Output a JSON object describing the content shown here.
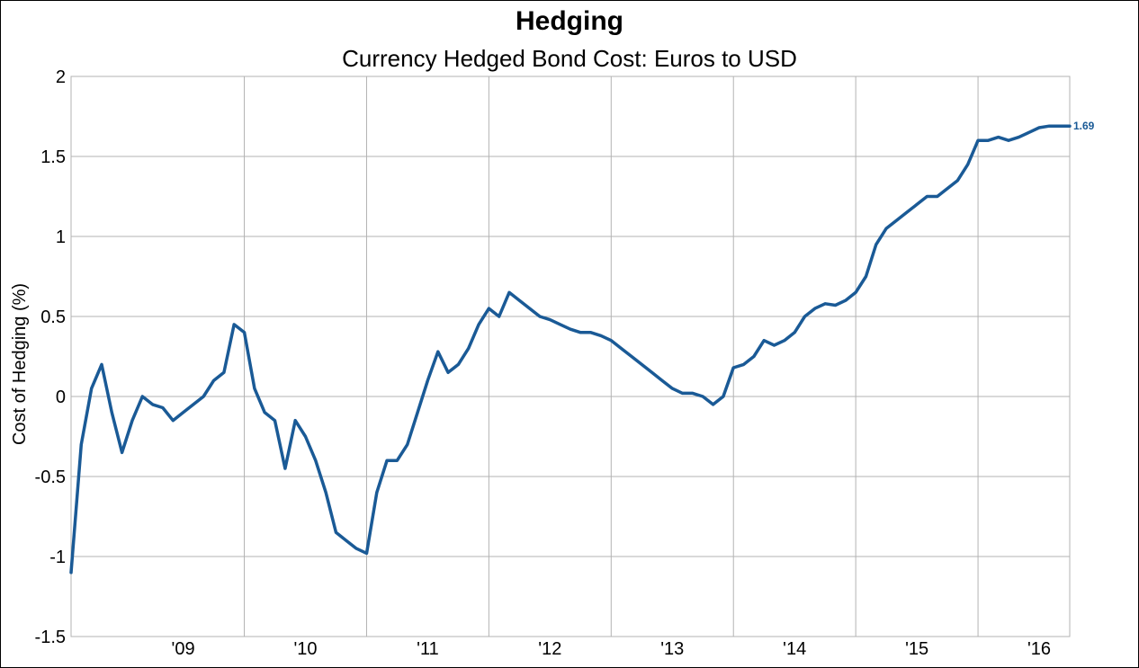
{
  "chart_data": {
    "type": "line",
    "title": "Hedging",
    "subtitle": "Currency Hedged Bond Cost: Euros to USD",
    "xlabel": "",
    "ylabel": "Cost of Hedging (%)",
    "ylim": [
      -1.5,
      2
    ],
    "yticks": [
      "-1.5",
      "-1",
      "-0.5",
      "0",
      "0.5",
      "1",
      "1.5",
      "2"
    ],
    "xlim": [
      "2008-08",
      "2016-10"
    ],
    "xticks": [
      {
        "label": "'09",
        "date": "2009-01"
      },
      {
        "label": "'10",
        "date": "2010-01"
      },
      {
        "label": "'11",
        "date": "2011-01"
      },
      {
        "label": "'12",
        "date": "2012-01"
      },
      {
        "label": "'13",
        "date": "2013-01"
      },
      {
        "label": "'14",
        "date": "2014-01"
      },
      {
        "label": "'15",
        "date": "2015-01"
      },
      {
        "label": "'16",
        "date": "2016-01"
      }
    ],
    "grid": true,
    "legend": "none",
    "series": [
      {
        "color": "#1a5a96",
        "end_label": "1.69",
        "x": [
          "2008-08",
          "2008-09",
          "2008-10",
          "2008-11",
          "2008-12",
          "2009-01",
          "2009-02",
          "2009-03",
          "2009-04",
          "2009-05",
          "2009-06",
          "2009-07",
          "2009-08",
          "2009-09",
          "2009-10",
          "2009-11",
          "2009-12",
          "2010-01",
          "2010-02",
          "2010-03",
          "2010-04",
          "2010-05",
          "2010-06",
          "2010-07",
          "2010-08",
          "2010-09",
          "2010-10",
          "2010-11",
          "2010-12",
          "2011-01",
          "2011-02",
          "2011-03",
          "2011-04",
          "2011-05",
          "2011-06",
          "2011-07",
          "2011-08",
          "2011-09",
          "2011-10",
          "2011-11",
          "2011-12",
          "2012-01",
          "2012-02",
          "2012-03",
          "2012-04",
          "2012-05",
          "2012-06",
          "2012-07",
          "2012-08",
          "2012-09",
          "2012-10",
          "2012-11",
          "2012-12",
          "2013-01",
          "2013-02",
          "2013-03",
          "2013-04",
          "2013-05",
          "2013-06",
          "2013-07",
          "2013-08",
          "2013-09",
          "2013-10",
          "2013-11",
          "2013-12",
          "2014-01",
          "2014-02",
          "2014-03",
          "2014-04",
          "2014-05",
          "2014-06",
          "2014-07",
          "2014-08",
          "2014-09",
          "2014-10",
          "2014-11",
          "2014-12",
          "2015-01",
          "2015-02",
          "2015-03",
          "2015-04",
          "2015-05",
          "2015-06",
          "2015-07",
          "2015-08",
          "2015-09",
          "2015-10",
          "2015-11",
          "2015-12",
          "2016-01",
          "2016-02",
          "2016-03",
          "2016-04",
          "2016-05",
          "2016-06",
          "2016-07",
          "2016-08",
          "2016-09",
          "2016-10"
        ],
        "values": [
          -1.1,
          -0.3,
          0.05,
          0.2,
          -0.1,
          -0.35,
          -0.15,
          0.0,
          -0.05,
          -0.07,
          -0.15,
          -0.1,
          -0.05,
          0.0,
          0.1,
          0.15,
          0.45,
          0.4,
          0.05,
          -0.1,
          -0.15,
          -0.45,
          -0.15,
          -0.25,
          -0.4,
          -0.6,
          -0.85,
          -0.9,
          -0.95,
          -0.98,
          -0.6,
          -0.4,
          -0.4,
          -0.3,
          -0.1,
          0.1,
          0.28,
          0.15,
          0.2,
          0.3,
          0.45,
          0.55,
          0.5,
          0.65,
          0.6,
          0.55,
          0.5,
          0.48,
          0.45,
          0.42,
          0.4,
          0.4,
          0.38,
          0.35,
          0.3,
          0.25,
          0.2,
          0.15,
          0.1,
          0.05,
          0.02,
          0.02,
          0.0,
          -0.05,
          0.0,
          0.18,
          0.2,
          0.25,
          0.35,
          0.32,
          0.35,
          0.4,
          0.5,
          0.55,
          0.58,
          0.57,
          0.6,
          0.65,
          0.75,
          0.95,
          1.05,
          1.1,
          1.15,
          1.2,
          1.25,
          1.25,
          1.3,
          1.35,
          1.45,
          1.6,
          1.6,
          1.62,
          1.6,
          1.62,
          1.65,
          1.68,
          1.69,
          1.69,
          1.69
        ]
      }
    ]
  }
}
